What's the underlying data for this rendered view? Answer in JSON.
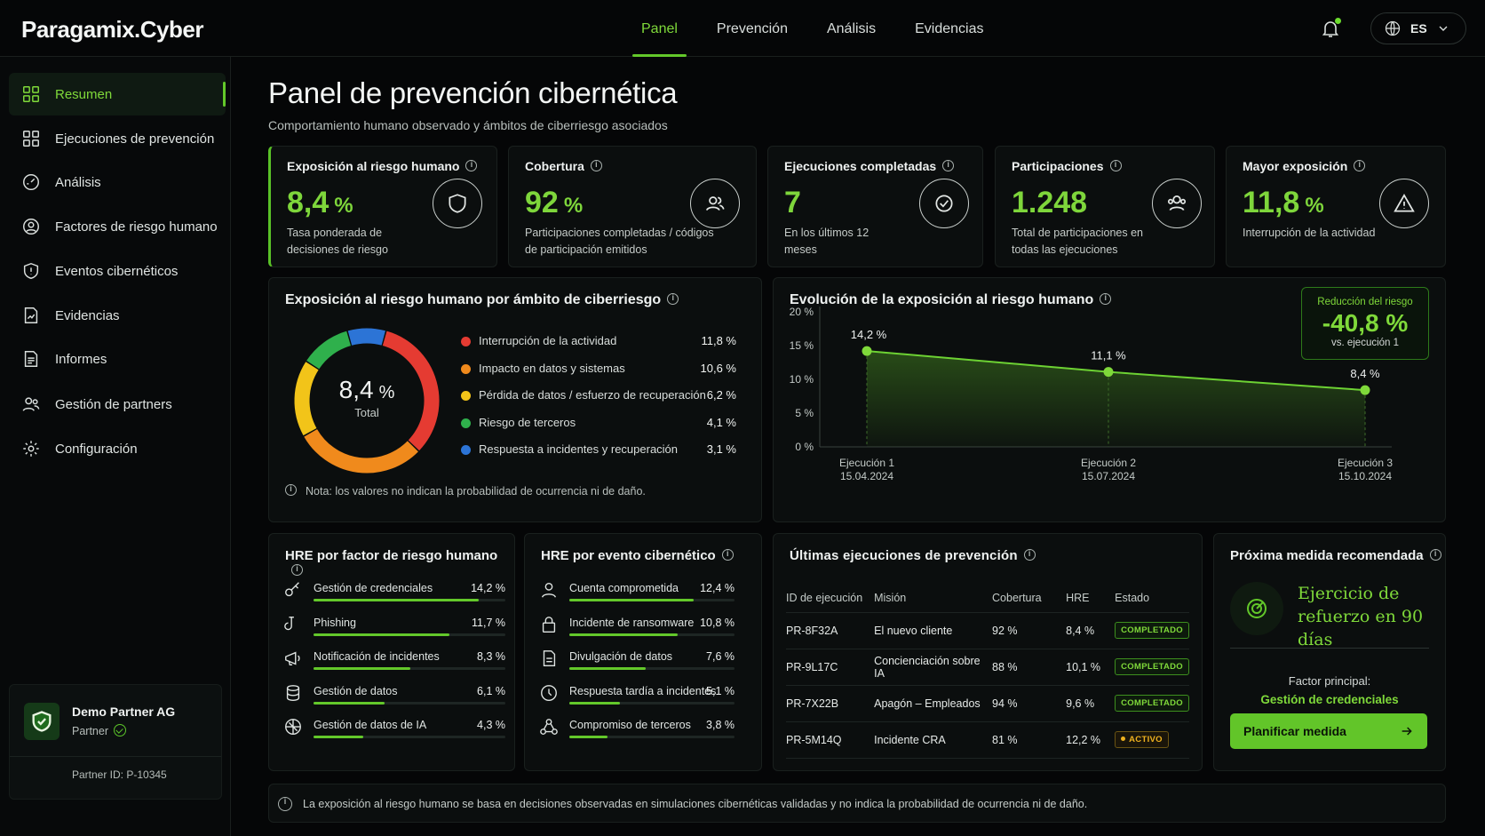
{
  "app": {
    "logo": "Paragamix.Cyber"
  },
  "nav": {
    "items": [
      "Panel",
      "Prevención",
      "Análisis",
      "Evidencias"
    ],
    "active": 0
  },
  "lang": {
    "code": "ES"
  },
  "sidebar": {
    "items": [
      {
        "label": "Resumen",
        "icon": "grid-icon"
      },
      {
        "label": "Ejecuciones de prevención",
        "icon": "grid-icon"
      },
      {
        "label": "Análisis",
        "icon": "gauge-icon"
      },
      {
        "label": "Factores de riesgo humano",
        "icon": "user-circle-icon"
      },
      {
        "label": "Eventos cibernéticos",
        "icon": "alert-shield-icon"
      },
      {
        "label": "Evidencias",
        "icon": "chart-document-icon"
      },
      {
        "label": "Informes",
        "icon": "document-icon"
      },
      {
        "label": "Gestión de partners",
        "icon": "users-icon"
      },
      {
        "label": "Configuración",
        "icon": "gear-icon"
      }
    ],
    "partner": {
      "name": "Demo Partner AG",
      "role": "Partner",
      "id": "Partner ID: P-10345"
    }
  },
  "page": {
    "title": "Panel de prevención cibernética",
    "subtitle": "Comportamiento humano observado y ámbitos de ciberriesgo asociados"
  },
  "kpis": [
    {
      "label": "Exposición al riesgo humano",
      "value": "8,4",
      "unit": "%",
      "desc": "Tasa ponderada de decisiones de riesgo",
      "icon": "shield-icon"
    },
    {
      "label": "Cobertura",
      "value": "92",
      "unit": "%",
      "desc": "Participaciones completadas / códigos de participación emitidos",
      "icon": "user-group-icon"
    },
    {
      "label": "Ejecuciones completadas",
      "value": "7",
      "unit": "",
      "desc": "En los últimos 12 meses",
      "icon": "check-circle-icon"
    },
    {
      "label": "Participaciones",
      "value": "1.248",
      "unit": "",
      "desc": "Total de participaciones en todas las ejecuciones",
      "icon": "users-icon"
    },
    {
      "label": "Mayor exposición",
      "value": "11,8",
      "unit": "%",
      "desc": "Interrupción de la actividad",
      "icon": "warning-icon"
    }
  ],
  "donut": {
    "title": "Exposición al riesgo humano por ámbito de ciberriesgo",
    "center_value": "8,4",
    "center_unit": "%",
    "center_label": "Total",
    "note": "Nota: los valores no indican la probabilidad de ocurrencia ni de daño."
  },
  "line": {
    "title": "Evolución de la exposición al riesgo humano",
    "reduction_label": "Reducción del riesgo",
    "reduction_value": "-40,8 %",
    "reduction_sub": "vs. ejecución 1"
  },
  "hre_factor": {
    "title": "HRE por factor de riesgo humano",
    "rows": [
      {
        "label": "Gestión de credenciales",
        "value": "14,2 %",
        "v": 14.2,
        "icon": "key-icon"
      },
      {
        "label": "Phishing",
        "value": "11,7 %",
        "v": 11.7,
        "icon": "hook-icon"
      },
      {
        "label": "Notificación de incidentes",
        "value": "8,3 %",
        "v": 8.3,
        "icon": "megaphone-icon"
      },
      {
        "label": "Gestión de datos",
        "value": "6,1 %",
        "v": 6.1,
        "icon": "database-icon"
      },
      {
        "label": "Gestión de datos de IA",
        "value": "4,3 %",
        "v": 4.3,
        "icon": "ai-chip-icon"
      }
    ]
  },
  "hre_event": {
    "title": "HRE por evento cibernético",
    "rows": [
      {
        "label": "Cuenta comprometida",
        "value": "12,4 %",
        "v": 12.4,
        "icon": "user-icon"
      },
      {
        "label": "Incidente de ransomware",
        "value": "10,8 %",
        "v": 10.8,
        "icon": "lock-icon"
      },
      {
        "label": "Divulgación de datos",
        "value": "7,6 %",
        "v": 7.6,
        "icon": "file-icon"
      },
      {
        "label": "Respuesta tardía a incidentes",
        "value": "5,1 %",
        "v": 5.1,
        "icon": "clock-icon"
      },
      {
        "label": "Compromiso de terceros",
        "value": "3,8 %",
        "v": 3.8,
        "icon": "network-icon"
      }
    ]
  },
  "executions": {
    "title": "Últimas ejecuciones de prevención",
    "headers": [
      "ID de ejecución",
      "Misión",
      "Cobertura",
      "HRE",
      "Estado"
    ],
    "rows": [
      {
        "id": "PR-8F32A",
        "mission": "El nuevo cliente",
        "coverage": "92 %",
        "hre": "8,4 %",
        "status": "COMPLETADO",
        "kind": "done"
      },
      {
        "id": "PR-9L17C",
        "mission": "Concienciación sobre IA",
        "coverage": "88 %",
        "hre": "10,1 %",
        "status": "COMPLETADO",
        "kind": "done"
      },
      {
        "id": "PR-7X22B",
        "mission": "Apagón – Empleados",
        "coverage": "94 %",
        "hre": "9,6 %",
        "status": "COMPLETADO",
        "kind": "done"
      },
      {
        "id": "PR-5M14Q",
        "mission": "Incidente CRA",
        "coverage": "81 %",
        "hre": "12,2 %",
        "status": "ACTIVO",
        "kind": "act"
      }
    ]
  },
  "next": {
    "title": "Próxima medida recomendada",
    "headline": "Ejercicio de refuerzo en 90 días",
    "factor_label": "Factor principal:",
    "factor_value": "Gestión de credenciales",
    "button": "Planificar medida"
  },
  "footer": {
    "text": "La exposición al riesgo humano se basa en decisiones observadas en simulaciones cibernéticas validadas y no indica la probabilidad de ocurrencia ni de daño."
  },
  "colors": {
    "accent": "#63c82a",
    "bg": "#050607",
    "card": "#0b0e0e"
  },
  "chart_data": [
    {
      "type": "pie",
      "categories": [
        "Interrupción de la actividad",
        "Impacto en datos y sistemas",
        "Pérdida de datos / esfuerzo de recuperación",
        "Riesgo de terceros",
        "Respuesta a incidentes y recuperación"
      ],
      "values": [
        11.8,
        10.6,
        6.2,
        4.1,
        3.1
      ],
      "labels": [
        "11,8 %",
        "10,6 %",
        "6,2 %",
        "4,1 %",
        "3,1 %"
      ],
      "colors": [
        "#e53b32",
        "#f08a1c",
        "#f2c419",
        "#2fb04c",
        "#2c74d6"
      ]
    },
    {
      "type": "area",
      "x": [
        "Ejecución 1",
        "Ejecución 2",
        "Ejecución 3"
      ],
      "x_dates": [
        "15.04.2024",
        "15.07.2024",
        "15.10.2024"
      ],
      "values": [
        14.2,
        11.1,
        8.4
      ],
      "labels": [
        "14,2 %",
        "11,1 %",
        "8,4 %"
      ],
      "yticks": [
        "0 %",
        "5 %",
        "10 %",
        "15 %",
        "20 %"
      ],
      "ylim": [
        0,
        20
      ],
      "grid": false
    }
  ]
}
